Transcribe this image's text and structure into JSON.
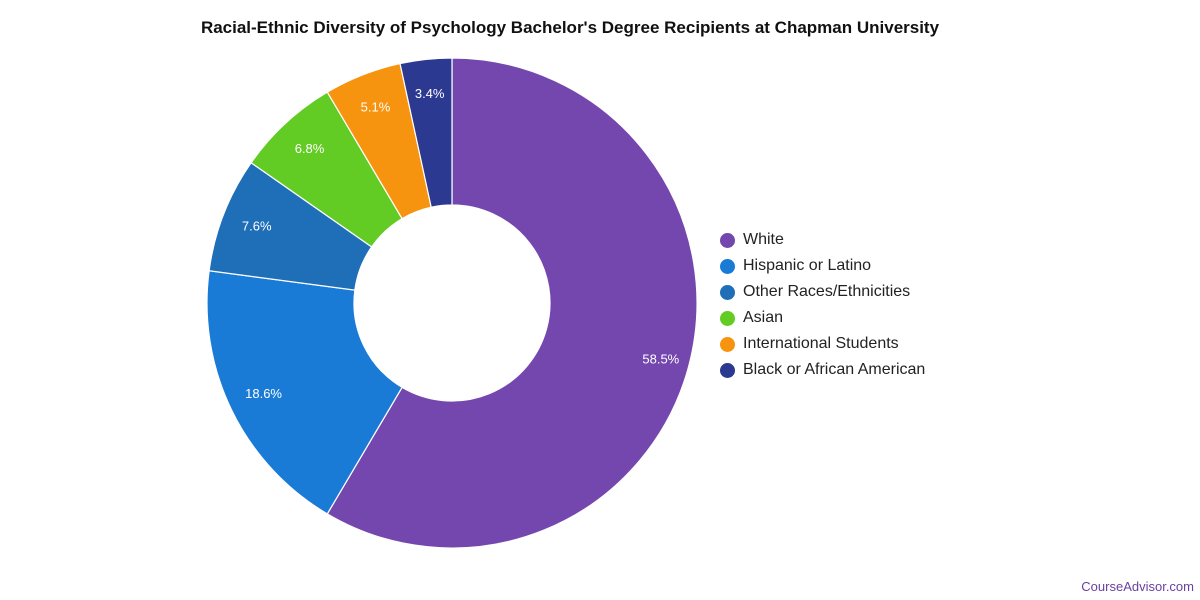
{
  "title": "Racial-Ethnic Diversity of Psychology Bachelor's Degree Recipients at Chapman University",
  "credit": "CourseAdvisor.com",
  "chart_data": {
    "type": "pie",
    "variant": "donut",
    "legend_placement": "right",
    "slices": [
      {
        "label": "White",
        "value": 58.5,
        "value_label": "58.5%",
        "color": "#7447ae"
      },
      {
        "label": "Hispanic or Latino",
        "value": 18.6,
        "value_label": "18.6%",
        "color": "#1a7bd6"
      },
      {
        "label": "Other Races/Ethnicities",
        "value": 7.6,
        "value_label": "7.6%",
        "color": "#1e6eb8"
      },
      {
        "label": "Asian",
        "value": 6.8,
        "value_label": "6.8%",
        "color": "#63cc24"
      },
      {
        "label": "International Students",
        "value": 5.1,
        "value_label": "5.1%",
        "color": "#f7940f"
      },
      {
        "label": "Black or African American",
        "value": 3.4,
        "value_label": "3.4%",
        "color": "#2b3990"
      }
    ]
  }
}
